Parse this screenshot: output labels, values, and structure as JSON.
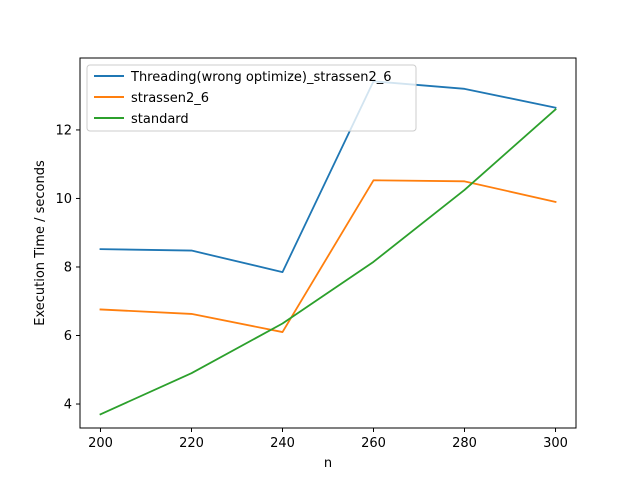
{
  "chart_data": {
    "type": "line",
    "title": "",
    "xlabel": "n",
    "ylabel": "Execution Time / seconds",
    "xlim": [
      195.5,
      304.5
    ],
    "ylim": [
      3.3,
      14.1
    ],
    "x_ticks": [
      200,
      220,
      240,
      260,
      280,
      300
    ],
    "y_ticks": [
      4,
      6,
      8,
      10,
      12
    ],
    "grid": false,
    "legend_position": "upper-left",
    "x": [
      200,
      220,
      240,
      260,
      280,
      300
    ],
    "series": [
      {
        "name": "Threading(wrong optimize)_strassen2_6",
        "color": "#1f77b4",
        "values": [
          8.52,
          8.48,
          7.85,
          13.42,
          13.2,
          12.65
        ]
      },
      {
        "name": "strassen2_6",
        "color": "#ff7f0e",
        "values": [
          6.76,
          6.63,
          6.1,
          10.53,
          10.5,
          9.9
        ]
      },
      {
        "name": "standard",
        "color": "#2ca02c",
        "values": [
          3.7,
          4.9,
          6.35,
          8.15,
          10.25,
          12.6
        ]
      }
    ]
  }
}
